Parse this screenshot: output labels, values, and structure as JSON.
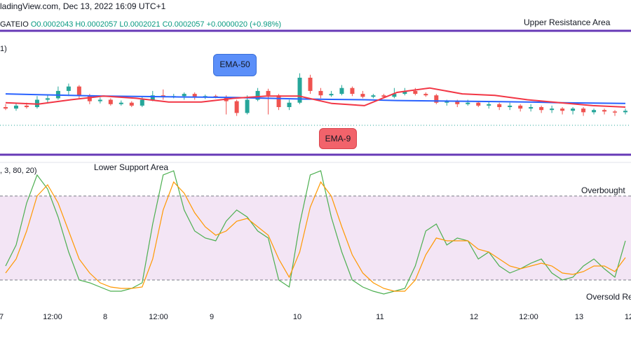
{
  "header": {
    "title": "ladingView.com, Dec 13, 2022 16:09 UTC+1",
    "symbol": "GATEIO",
    "ohlc": "O0.0002043  H0.0002057  L0.0002021  C0.0002057  +0.0000020 (+0.98%)"
  },
  "annotations": {
    "upper": "Upper Resistance Area",
    "lower": "Lower Support Area",
    "overbought": "Overbought",
    "oversold": "Oversold Re",
    "ema50": "EMA-50",
    "ema9": "EMA-9"
  },
  "panes": {
    "price_label": "1)",
    "osc_label": ", 3, 80, 20)"
  },
  "colors": {
    "up": "#26a69a",
    "down": "#ef5350",
    "ema50": "#2962ff",
    "ema9": "#f23645",
    "resistance": "#673ab7",
    "stoch_k": "#4caf50",
    "stoch_d": "#ff9800",
    "band": "#f3e5f5"
  },
  "chart_data": [
    {
      "type": "candlestick",
      "x_ticks": [
        "7",
        "12:00",
        "8",
        "12:00",
        "9",
        "10",
        "11",
        "12",
        "12:00",
        "13",
        "12"
      ],
      "candles_ohlc": [
        [
          0.4,
          0.38,
          0.44,
          0.36
        ],
        [
          0.38,
          0.42,
          0.45,
          0.35
        ],
        [
          0.42,
          0.4,
          0.46,
          0.38
        ],
        [
          0.4,
          0.5,
          0.55,
          0.38
        ],
        [
          0.5,
          0.52,
          0.56,
          0.46
        ],
        [
          0.52,
          0.62,
          0.68,
          0.5
        ],
        [
          0.62,
          0.68,
          0.72,
          0.55
        ],
        [
          0.68,
          0.56,
          0.7,
          0.52
        ],
        [
          0.56,
          0.48,
          0.58,
          0.44
        ],
        [
          0.48,
          0.5,
          0.53,
          0.45
        ],
        [
          0.5,
          0.44,
          0.52,
          0.42
        ],
        [
          0.44,
          0.46,
          0.49,
          0.42
        ],
        [
          0.46,
          0.42,
          0.48,
          0.4
        ],
        [
          0.42,
          0.5,
          0.55,
          0.4
        ],
        [
          0.5,
          0.56,
          0.62,
          0.48
        ],
        [
          0.56,
          0.54,
          0.64,
          0.5
        ],
        [
          0.54,
          0.55,
          0.58,
          0.52
        ],
        [
          0.55,
          0.58,
          0.6,
          0.5
        ],
        [
          0.58,
          0.53,
          0.6,
          0.5
        ],
        [
          0.53,
          0.55,
          0.57,
          0.51
        ],
        [
          0.55,
          0.54,
          0.57,
          0.52
        ],
        [
          0.54,
          0.48,
          0.56,
          0.3
        ],
        [
          0.48,
          0.32,
          0.5,
          0.28
        ],
        [
          0.32,
          0.5,
          0.56,
          0.3
        ],
        [
          0.5,
          0.62,
          0.66,
          0.48
        ],
        [
          0.62,
          0.56,
          0.65,
          0.3
        ],
        [
          0.56,
          0.4,
          0.58,
          0.36
        ],
        [
          0.4,
          0.46,
          0.5,
          0.36
        ],
        [
          0.46,
          0.8,
          0.86,
          0.44
        ],
        [
          0.8,
          0.62,
          0.84,
          0.58
        ],
        [
          0.62,
          0.56,
          0.66,
          0.52
        ],
        [
          0.56,
          0.58,
          0.62,
          0.54
        ],
        [
          0.58,
          0.66,
          0.7,
          0.56
        ],
        [
          0.66,
          0.58,
          0.68,
          0.55
        ],
        [
          0.58,
          0.54,
          0.62,
          0.52
        ],
        [
          0.54,
          0.56,
          0.58,
          0.52
        ],
        [
          0.56,
          0.54,
          0.58,
          0.52
        ],
        [
          0.54,
          0.58,
          0.66,
          0.52
        ],
        [
          0.58,
          0.62,
          0.66,
          0.56
        ],
        [
          0.62,
          0.58,
          0.66,
          0.56
        ],
        [
          0.58,
          0.56,
          0.6,
          0.54
        ],
        [
          0.56,
          0.46,
          0.58,
          0.44
        ],
        [
          0.46,
          0.48,
          0.5,
          0.42
        ],
        [
          0.48,
          0.44,
          0.5,
          0.4
        ],
        [
          0.44,
          0.46,
          0.5,
          0.42
        ],
        [
          0.46,
          0.42,
          0.48,
          0.4
        ],
        [
          0.42,
          0.44,
          0.48,
          0.38
        ],
        [
          0.44,
          0.4,
          0.46,
          0.36
        ],
        [
          0.4,
          0.42,
          0.46,
          0.36
        ],
        [
          0.42,
          0.38,
          0.44,
          0.34
        ],
        [
          0.38,
          0.4,
          0.44,
          0.34
        ],
        [
          0.4,
          0.36,
          0.42,
          0.32
        ],
        [
          0.36,
          0.38,
          0.42,
          0.32
        ],
        [
          0.38,
          0.35,
          0.4,
          0.3
        ],
        [
          0.35,
          0.38,
          0.4,
          0.3
        ],
        [
          0.38,
          0.33,
          0.4,
          0.28
        ],
        [
          0.33,
          0.36,
          0.38,
          0.3
        ],
        [
          0.36,
          0.34,
          0.38,
          0.3
        ],
        [
          0.34,
          0.33,
          0.36,
          0.28
        ],
        [
          0.33,
          0.35,
          0.38,
          0.3
        ]
      ],
      "ema50": [
        0.58,
        0.57,
        0.56,
        0.55,
        0.545,
        0.54,
        0.535,
        0.53,
        0.52,
        0.51,
        0.505,
        0.5,
        0.49,
        0.485,
        0.48,
        0.475,
        0.47,
        0.46,
        0.455,
        0.45
      ],
      "ema9": [
        0.46,
        0.44,
        0.5,
        0.55,
        0.52,
        0.47,
        0.47,
        0.52,
        0.55,
        0.55,
        0.45,
        0.42,
        0.6,
        0.66,
        0.58,
        0.56,
        0.5,
        0.46,
        0.42,
        0.4
      ]
    },
    {
      "type": "line",
      "ylim": [
        0,
        100
      ],
      "levels": [
        80,
        20
      ],
      "series": [
        {
          "values": [
            30,
            45,
            75,
            95,
            85,
            65,
            40,
            20,
            18,
            15,
            12,
            12,
            14,
            18,
            60,
            95,
            98,
            70,
            55,
            50,
            48,
            62,
            70,
            65,
            55,
            50,
            20,
            15,
            60,
            95,
            98,
            65,
            40,
            20,
            15,
            12,
            10,
            12,
            14,
            30,
            55,
            60,
            45,
            50,
            48,
            35,
            40,
            30,
            25,
            28,
            32,
            35,
            25,
            20,
            22,
            30,
            35,
            28,
            22,
            48
          ]
        },
        {
          "values": [
            25,
            35,
            55,
            80,
            88,
            75,
            55,
            35,
            25,
            18,
            15,
            14,
            14,
            15,
            35,
            70,
            90,
            82,
            68,
            58,
            52,
            55,
            62,
            64,
            58,
            52,
            35,
            22,
            40,
            72,
            90,
            80,
            58,
            38,
            25,
            18,
            14,
            12,
            12,
            20,
            38,
            50,
            48,
            48,
            48,
            42,
            40,
            35,
            30,
            28,
            30,
            32,
            30,
            25,
            24,
            26,
            30,
            30,
            26,
            36
          ]
        }
      ]
    }
  ]
}
